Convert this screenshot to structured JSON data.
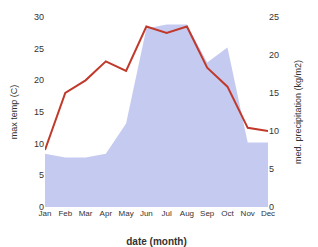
{
  "chart_data": {
    "type": "line",
    "categories": [
      "Jan",
      "Feb",
      "Mar",
      "Apr",
      "May",
      "Jun",
      "Jul",
      "Aug",
      "Sep",
      "Oct",
      "Nov",
      "Dec"
    ],
    "series": [
      {
        "type": "area",
        "axis": "y2",
        "color": "#c5cbf0",
        "values": [
          7.0,
          6.5,
          6.5,
          7.0,
          11.0,
          23.5,
          24.0,
          24.0,
          19.0,
          21.0,
          8.5,
          8.5
        ]
      },
      {
        "type": "line",
        "color": "#c0392b",
        "values": [
          9.0,
          18.0,
          20.0,
          23.0,
          21.5,
          28.5,
          27.5,
          28.5,
          22.0,
          19.0,
          12.5,
          12.0
        ]
      }
    ],
    "xlabel": "date (month)",
    "ylabel": "max temp (C)",
    "y2label": "med. precipitation (kg/m2)",
    "ylim": [
      0,
      30
    ],
    "yticks": [
      0,
      5,
      10,
      15,
      20,
      25,
      30
    ],
    "y2lim": [
      0,
      25
    ],
    "y2ticks": [
      0,
      5,
      10,
      15,
      20,
      25
    ],
    "grid": false
  }
}
